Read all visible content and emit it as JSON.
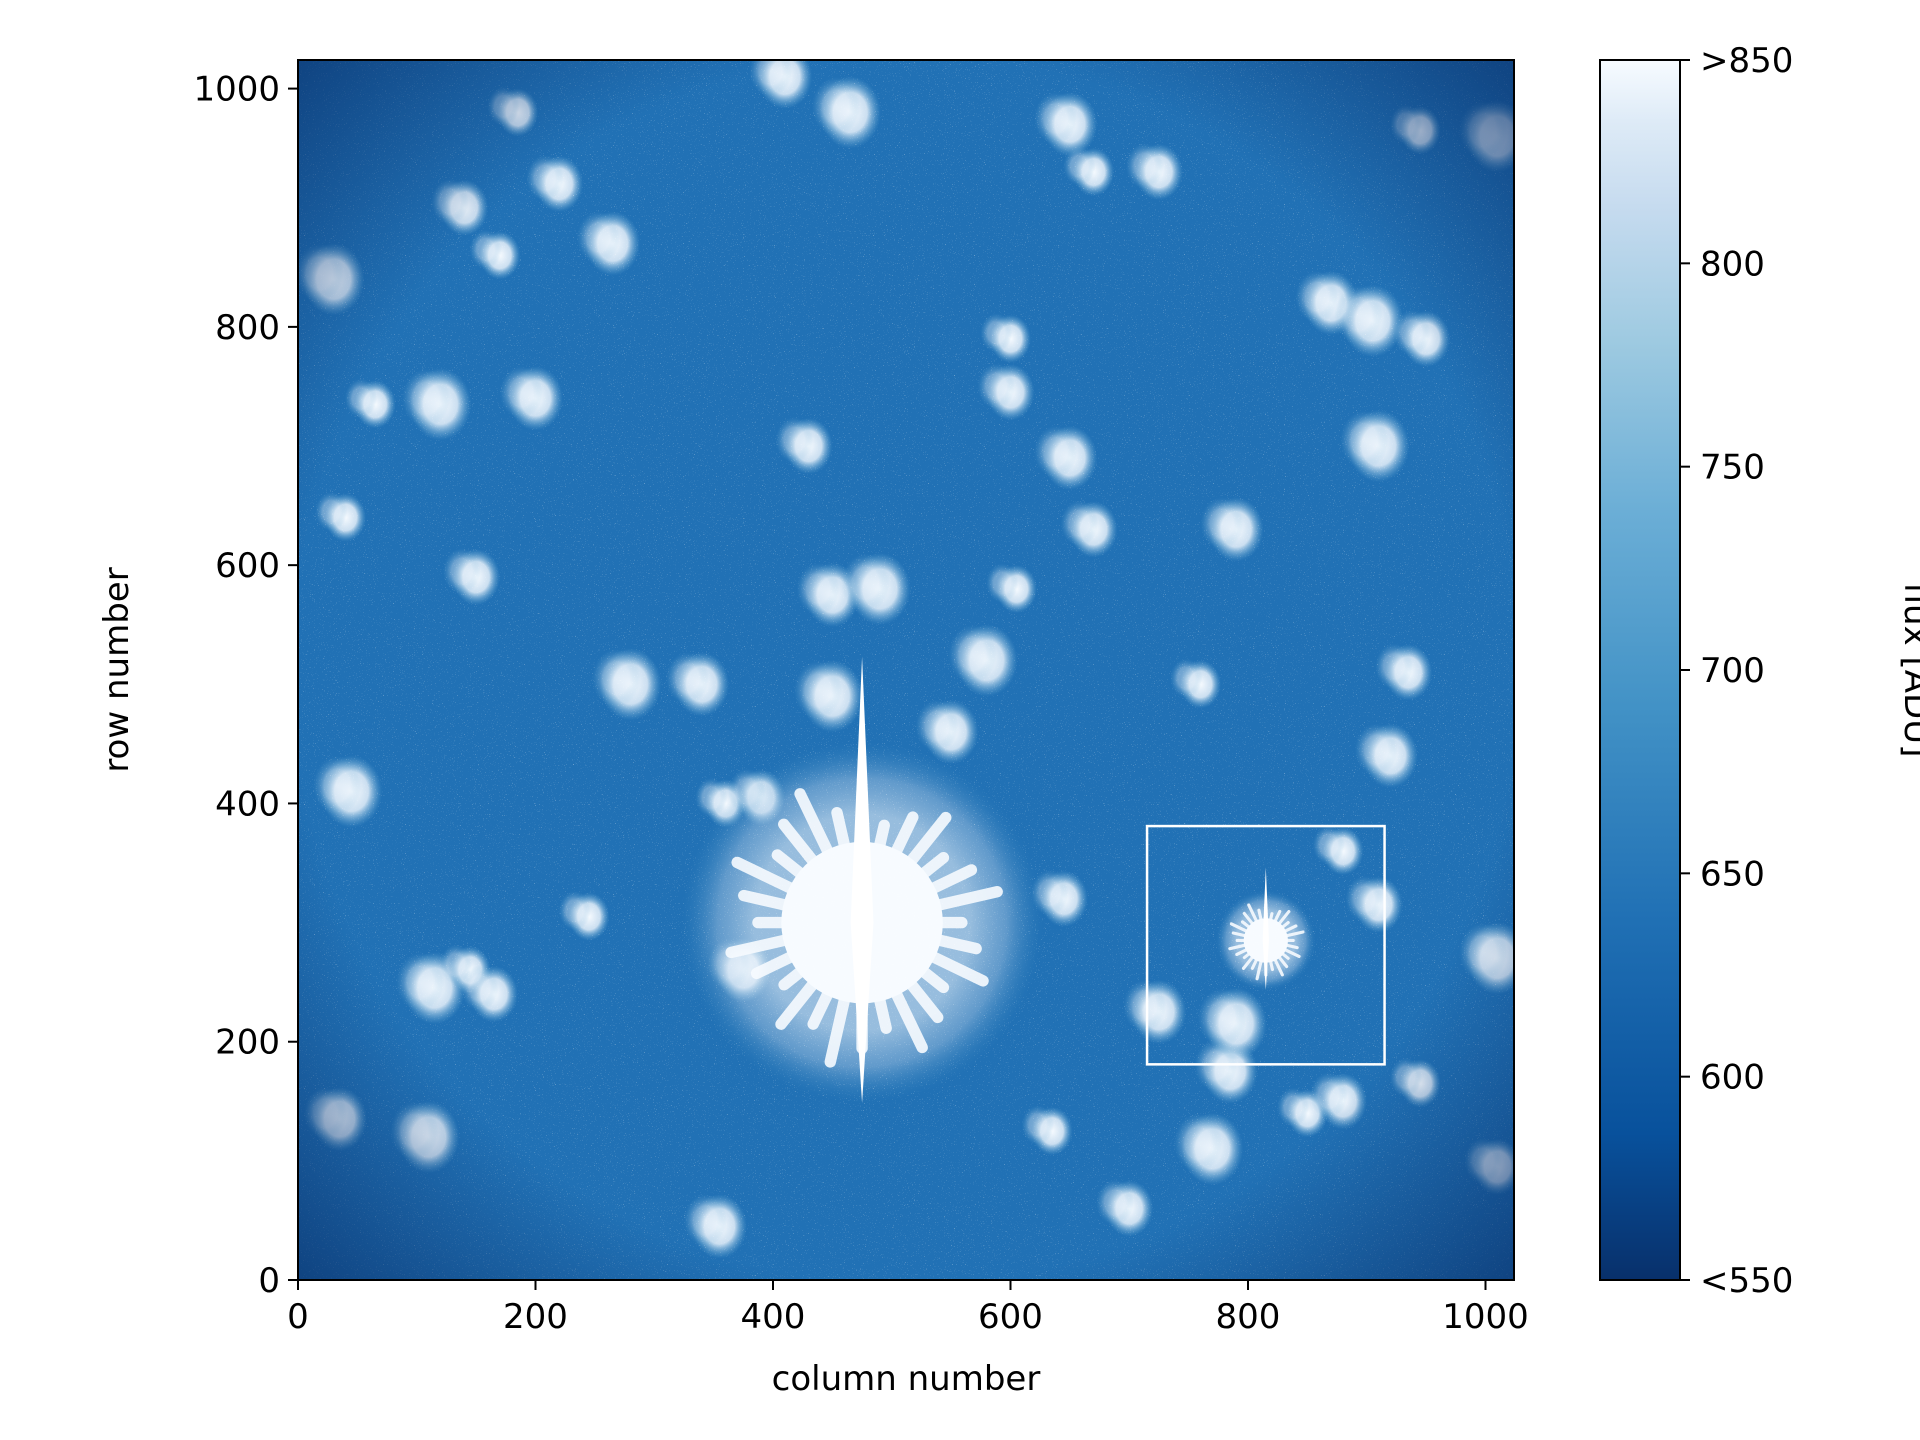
{
  "chart_data": {
    "type": "heatmap",
    "title": "",
    "xlabel": "column number",
    "ylabel": "row number",
    "xlim": [
      0,
      1024
    ],
    "ylim": [
      0,
      1024
    ],
    "x_ticks": [
      0,
      200,
      400,
      600,
      800,
      1000
    ],
    "y_ticks": [
      0,
      200,
      400,
      600,
      800,
      1000
    ],
    "x_tick_labels": [
      "0",
      "200",
      "400",
      "600",
      "800",
      "1000"
    ],
    "y_tick_labels": [
      "0",
      "200",
      "400",
      "600",
      "800",
      "1000"
    ],
    "colormap": "Blues_r",
    "color_low": "#08306b",
    "color_mid": "#2171b5",
    "color_high": "#f7fbff",
    "grid": false,
    "colorbar": {
      "label": "flux [ADU]",
      "range": [
        550,
        850
      ],
      "ticks": [
        550,
        600,
        650,
        700,
        750,
        800,
        850
      ],
      "tick_labels": [
        "<550",
        "600",
        "650",
        "700",
        "750",
        "800",
        ">850"
      ]
    },
    "highlight_box": {
      "x_range": [
        715,
        915
      ],
      "y_range": [
        181,
        381
      ],
      "color": "#ffffff"
    },
    "bright_sources": [
      {
        "x": 475,
        "y": 300,
        "radius": 80,
        "type": "saturated-star"
      },
      {
        "x": 815,
        "y": 285,
        "radius": 22,
        "type": "bright-star"
      }
    ],
    "blobs": [
      {
        "x": 185,
        "y": 980
      },
      {
        "x": 220,
        "y": 920
      },
      {
        "x": 265,
        "y": 870
      },
      {
        "x": 30,
        "y": 840
      },
      {
        "x": 170,
        "y": 860
      },
      {
        "x": 140,
        "y": 900
      },
      {
        "x": 410,
        "y": 1010
      },
      {
        "x": 465,
        "y": 980
      },
      {
        "x": 670,
        "y": 930
      },
      {
        "x": 725,
        "y": 930
      },
      {
        "x": 650,
        "y": 970
      },
      {
        "x": 1010,
        "y": 960
      },
      {
        "x": 600,
        "y": 790
      },
      {
        "x": 600,
        "y": 745
      },
      {
        "x": 200,
        "y": 740
      },
      {
        "x": 120,
        "y": 735
      },
      {
        "x": 65,
        "y": 735
      },
      {
        "x": 430,
        "y": 700
      },
      {
        "x": 650,
        "y": 690
      },
      {
        "x": 910,
        "y": 700
      },
      {
        "x": 40,
        "y": 640
      },
      {
        "x": 150,
        "y": 590
      },
      {
        "x": 450,
        "y": 575
      },
      {
        "x": 490,
        "y": 580
      },
      {
        "x": 605,
        "y": 580
      },
      {
        "x": 670,
        "y": 630
      },
      {
        "x": 790,
        "y": 630
      },
      {
        "x": 280,
        "y": 500
      },
      {
        "x": 760,
        "y": 500
      },
      {
        "x": 935,
        "y": 510
      },
      {
        "x": 920,
        "y": 440
      },
      {
        "x": 450,
        "y": 490
      },
      {
        "x": 360,
        "y": 400
      },
      {
        "x": 390,
        "y": 405
      },
      {
        "x": 550,
        "y": 460
      },
      {
        "x": 45,
        "y": 410
      },
      {
        "x": 245,
        "y": 305
      },
      {
        "x": 645,
        "y": 320
      },
      {
        "x": 375,
        "y": 260
      },
      {
        "x": 115,
        "y": 245
      },
      {
        "x": 145,
        "y": 260
      },
      {
        "x": 165,
        "y": 240
      },
      {
        "x": 35,
        "y": 135
      },
      {
        "x": 110,
        "y": 120
      },
      {
        "x": 850,
        "y": 140
      },
      {
        "x": 880,
        "y": 150
      },
      {
        "x": 785,
        "y": 175
      },
      {
        "x": 770,
        "y": 110
      },
      {
        "x": 635,
        "y": 125
      },
      {
        "x": 700,
        "y": 60
      },
      {
        "x": 355,
        "y": 45
      },
      {
        "x": 1010,
        "y": 270
      },
      {
        "x": 880,
        "y": 360
      },
      {
        "x": 910,
        "y": 315
      },
      {
        "x": 725,
        "y": 225
      },
      {
        "x": 790,
        "y": 215
      },
      {
        "x": 945,
        "y": 165
      },
      {
        "x": 1010,
        "y": 95
      },
      {
        "x": 870,
        "y": 820
      },
      {
        "x": 905,
        "y": 805
      },
      {
        "x": 945,
        "y": 965
      },
      {
        "x": 950,
        "y": 790
      },
      {
        "x": 340,
        "y": 500
      },
      {
        "x": 580,
        "y": 520
      }
    ]
  }
}
